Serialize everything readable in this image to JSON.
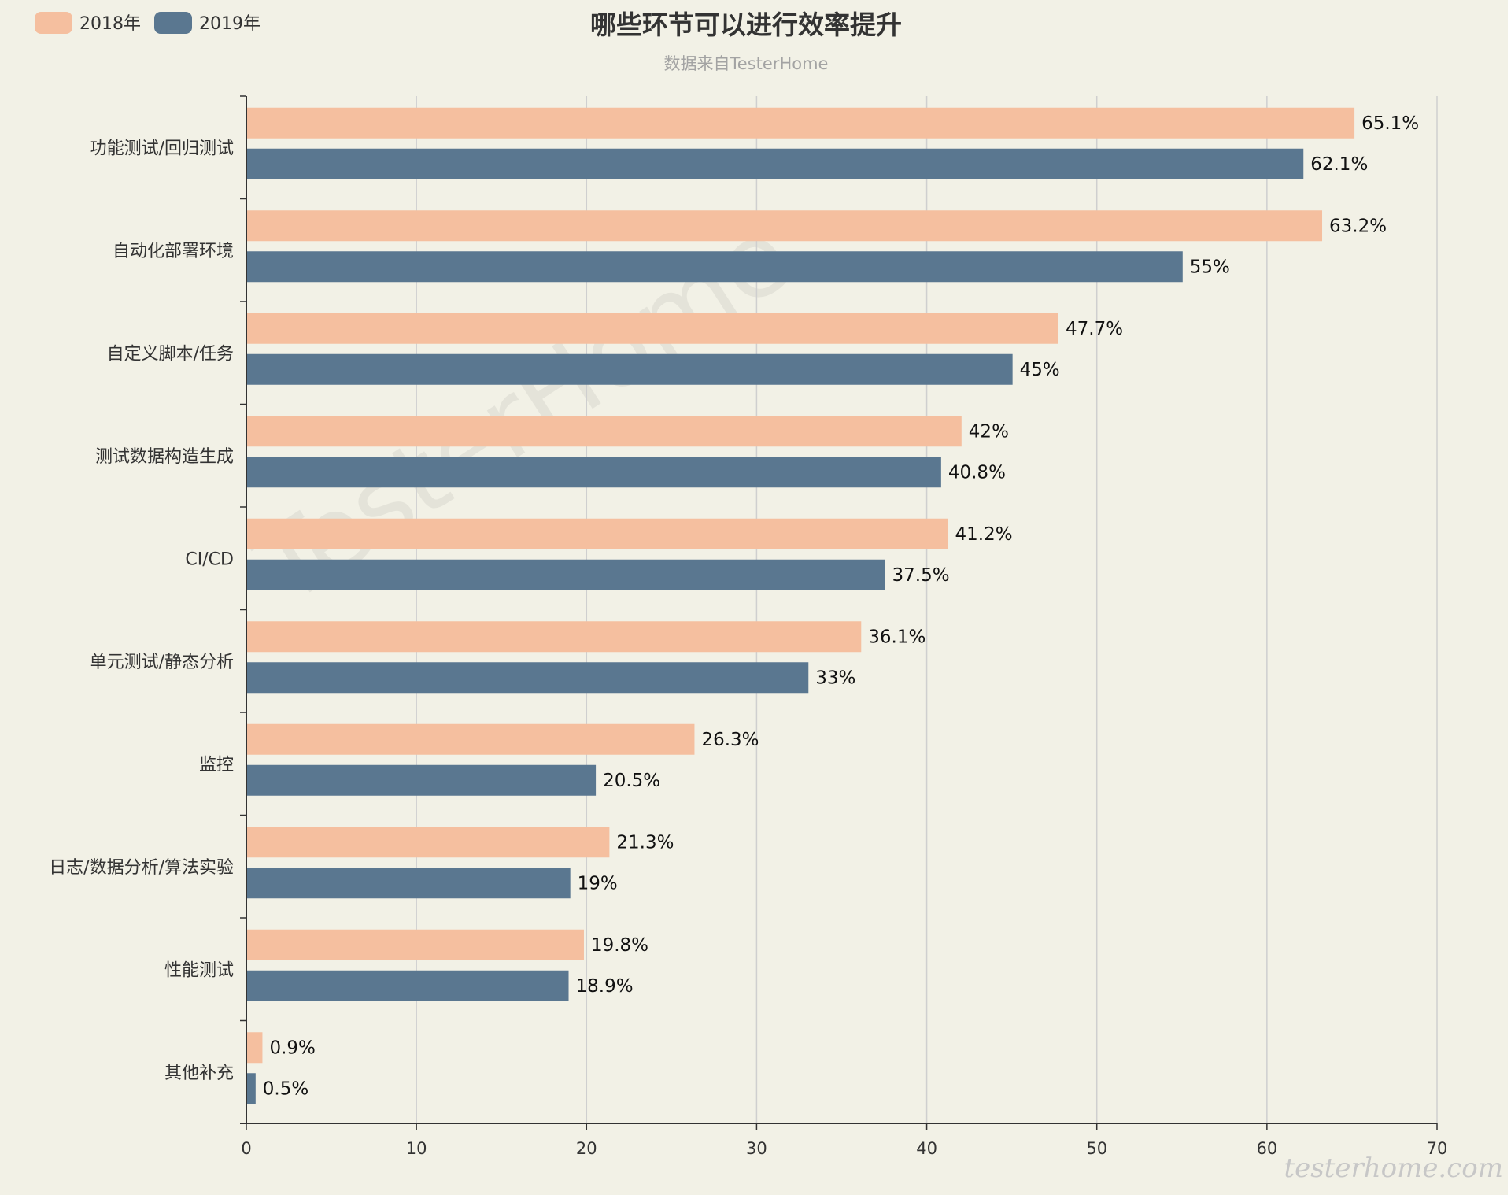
{
  "chart_data": {
    "type": "bar",
    "orientation": "horizontal",
    "title": "哪些环节可以进行效率提升",
    "subtitle": "数据来自TesterHome",
    "categories": [
      "功能测试/回归测试",
      "自动化部署环境",
      "自定义脚本/任务",
      "测试数据构造生成",
      "CI/CD",
      "单元测试/静态分析",
      "监控",
      "日志/数据分析/算法实验",
      "性能测试",
      "其他补充"
    ],
    "series": [
      {
        "name": "2018年",
        "color": "#f5bf9f",
        "values": [
          65.1,
          63.2,
          47.7,
          42,
          41.2,
          36.1,
          26.3,
          21.3,
          19.8,
          0.9
        ],
        "labels": [
          "65.1%",
          "63.2%",
          "47.7%",
          "42%",
          "41.2%",
          "36.1%",
          "26.3%",
          "21.3%",
          "19.8%",
          "0.9%"
        ]
      },
      {
        "name": "2019年",
        "color": "#5a7790",
        "values": [
          62.1,
          55,
          45,
          40.8,
          37.5,
          33,
          20.5,
          19,
          18.9,
          0.5
        ],
        "labels": [
          "62.1%",
          "55%",
          "45%",
          "40.8%",
          "37.5%",
          "33%",
          "20.5%",
          "19%",
          "18.9%",
          "0.5%"
        ]
      }
    ],
    "xlim": [
      0,
      70
    ],
    "xticks": [
      "0",
      "10",
      "20",
      "30",
      "40",
      "50",
      "60",
      "70"
    ],
    "grid": true,
    "legend_position": "top-left",
    "background": "#f2f1e6"
  },
  "watermark": {
    "center_text": "TesterHome",
    "corner_text": "testerhome.com"
  }
}
